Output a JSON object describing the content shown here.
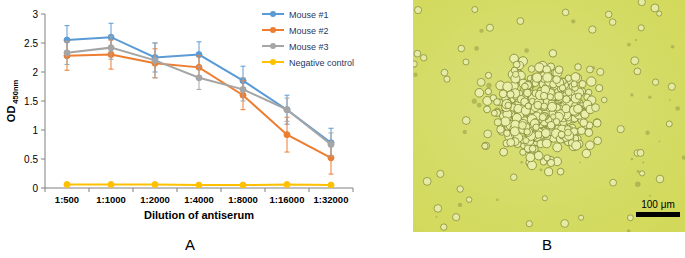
{
  "chart_data": {
    "type": "line",
    "xlabel": "Dilution of antiserum",
    "ylabel": "OD",
    "ylabel_subscript": "450nm",
    "categories": [
      "1:500",
      "1:1000",
      "1:2000",
      "1:4000",
      "1:8000",
      "1:16000",
      "1:32000"
    ],
    "ylim": [
      0,
      3
    ],
    "yticks": [
      0,
      0.5,
      1,
      1.5,
      2,
      2.5,
      3
    ],
    "grid": false,
    "legend": "upper right",
    "series": [
      {
        "name": "Mouse #1",
        "color": "#5b9bd5",
        "marker": "circle",
        "values": [
          2.55,
          2.6,
          2.25,
          2.3,
          1.85,
          1.35,
          0.78
        ],
        "errors": [
          0.25,
          0.24,
          0.25,
          0.22,
          0.25,
          0.25,
          0.25
        ]
      },
      {
        "name": "Mouse #2",
        "color": "#ed7d31",
        "marker": "circle",
        "values": [
          2.28,
          2.3,
          2.15,
          2.08,
          1.6,
          0.92,
          0.52
        ],
        "errors": [
          0.25,
          0.25,
          0.25,
          0.2,
          0.25,
          0.3,
          0.28
        ]
      },
      {
        "name": "Mouse #3",
        "color": "#a5a5a5",
        "marker": "circle",
        "values": [
          2.33,
          2.42,
          2.2,
          1.9,
          1.7,
          1.35,
          0.75
        ],
        "errors": [
          0.2,
          0.2,
          0.3,
          0.2,
          0.2,
          0.2,
          0.2
        ]
      },
      {
        "name": "Negative control",
        "color": "#ffc000",
        "marker": "circle",
        "values": [
          0.06,
          0.06,
          0.06,
          0.05,
          0.05,
          0.06,
          0.05
        ],
        "errors": [
          0.02,
          0.02,
          0.02,
          0.02,
          0.02,
          0.02,
          0.02
        ]
      }
    ]
  },
  "panel_labels": [
    "A",
    "B"
  ],
  "micrograph": {
    "scale_bar": "100 μm"
  }
}
